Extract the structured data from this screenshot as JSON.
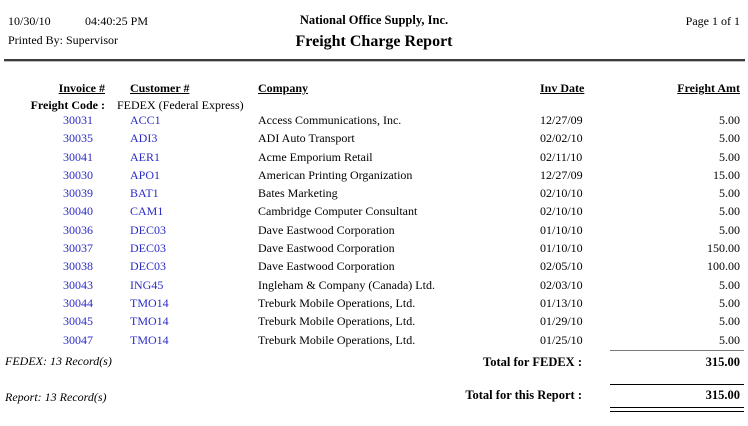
{
  "page": {
    "date": "10/30/10",
    "time": "04:40:25 PM",
    "printed_by": "Printed By: Supervisor",
    "company_name": "National Office Supply, Inc.",
    "report_title": "Freight Charge Report",
    "page_info": "Page 1 of 1"
  },
  "table": {
    "columns": [
      "Invoice #",
      "Customer #",
      "Company",
      "Inv Date",
      "Freight Amt"
    ],
    "group": {
      "label": "Freight Code :",
      "value": "FEDEX (Federal Express)"
    },
    "rows": [
      {
        "invoice": "30031",
        "customer": "ACC1",
        "company": "Access Communications, Inc.",
        "inv_date": "12/27/09",
        "freight_amt": "5.00"
      },
      {
        "invoice": "30035",
        "customer": "ADI3",
        "company": "ADI Auto Transport",
        "inv_date": "02/02/10",
        "freight_amt": "5.00"
      },
      {
        "invoice": "30041",
        "customer": "AER1",
        "company": "Acme Emporium Retail",
        "inv_date": "02/11/10",
        "freight_amt": "5.00"
      },
      {
        "invoice": "30030",
        "customer": "APO1",
        "company": "American Printing Organization",
        "inv_date": "12/27/09",
        "freight_amt": "15.00"
      },
      {
        "invoice": "30039",
        "customer": "BAT1",
        "company": "Bates Marketing",
        "inv_date": "02/10/10",
        "freight_amt": "5.00"
      },
      {
        "invoice": "30040",
        "customer": "CAM1",
        "company": "Cambridge Computer Consultant",
        "inv_date": "02/10/10",
        "freight_amt": "5.00"
      },
      {
        "invoice": "30036",
        "customer": "DEC03",
        "company": "Dave Eastwood Corporation",
        "inv_date": "01/10/10",
        "freight_amt": "5.00"
      },
      {
        "invoice": "30037",
        "customer": "DEC03",
        "company": "Dave Eastwood Corporation",
        "inv_date": "01/10/10",
        "freight_amt": "150.00"
      },
      {
        "invoice": "30038",
        "customer": "DEC03",
        "company": "Dave Eastwood Corporation",
        "inv_date": "02/05/10",
        "freight_amt": "100.00"
      },
      {
        "invoice": "30043",
        "customer": "ING45",
        "company": "Ingleham & Company (Canada) Ltd.",
        "inv_date": "02/03/10",
        "freight_amt": "5.00"
      },
      {
        "invoice": "30044",
        "customer": "TMO14",
        "company": "Treburk Mobile Operations, Ltd.",
        "inv_date": "01/13/10",
        "freight_amt": "5.00"
      },
      {
        "invoice": "30045",
        "customer": "TMO14",
        "company": "Treburk Mobile Operations, Ltd.",
        "inv_date": "01/29/10",
        "freight_amt": "5.00"
      },
      {
        "invoice": "30047",
        "customer": "TMO14",
        "company": "Treburk Mobile Operations, Ltd.",
        "inv_date": "01/25/10",
        "freight_amt": "5.00"
      }
    ]
  },
  "group_footer": {
    "records": "FEDEX: 13 Record(s)",
    "total_label": "Total for FEDEX :",
    "total_value": "315.00"
  },
  "report_footer": {
    "records": "Report: 13 Record(s)",
    "total_label": "Total for this Report :",
    "total_value": "315.00"
  },
  "colors": {
    "link_blue": "#2b2bc8",
    "text": "#000000"
  }
}
